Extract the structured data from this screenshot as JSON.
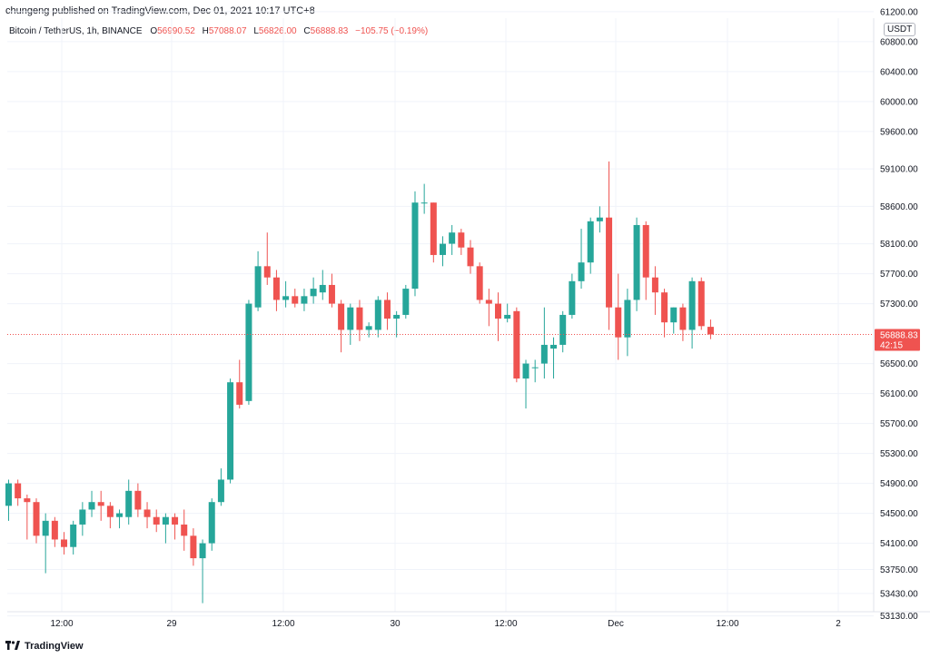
{
  "header": {
    "publisher_line": "chungeng published on TradingView.com, Dec 01, 2021 10:17 UTC+8"
  },
  "legend": {
    "symbol": "Bitcoin / TetherUS, 1h, BINANCE",
    "open_key": "O",
    "open": "56990.52",
    "high_key": "H",
    "high": "57088.07",
    "low_key": "L",
    "low": "56826.00",
    "close_key": "C",
    "close": "56888.83",
    "change": "−105.75 (−0.19%)"
  },
  "price_axis": {
    "currency": "USDT",
    "last_price": "56888.83",
    "countdown": "42:15",
    "ticks": [
      "61200.00",
      "60800.00",
      "60400.00",
      "60000.00",
      "59600.00",
      "59100.00",
      "58600.00",
      "58100.00",
      "57700.00",
      "57300.00",
      "56500.00",
      "56100.00",
      "55700.00",
      "55300.00",
      "54900.00",
      "54500.00",
      "54100.00",
      "53750.00",
      "53430.00",
      "53130.00"
    ]
  },
  "time_axis": {
    "labels": [
      "12:00",
      "29",
      "12:00",
      "30",
      "12:00",
      "Dec",
      "12:00",
      "2"
    ]
  },
  "footer": {
    "brand": "TradingView"
  },
  "colors": {
    "up": "#26a69a",
    "down": "#ef5350",
    "grid": "#f0f3fa",
    "text": "#131722"
  },
  "chart_data": {
    "type": "candlestick",
    "symbol": "Bitcoin / TetherUS",
    "interval": "1h",
    "exchange": "BINANCE",
    "ylim": [
      52900,
      61600
    ],
    "last_price": 56888.83,
    "grid": true,
    "candles": [
      {
        "o": 54600,
        "h": 54950,
        "l": 54400,
        "c": 54900
      },
      {
        "o": 54900,
        "h": 54950,
        "l": 54600,
        "c": 54700
      },
      {
        "o": 54700,
        "h": 54750,
        "l": 54150,
        "c": 54650
      },
      {
        "o": 54650,
        "h": 54700,
        "l": 54100,
        "c": 54200
      },
      {
        "o": 54200,
        "h": 54500,
        "l": 53700,
        "c": 54400
      },
      {
        "o": 54400,
        "h": 54450,
        "l": 54050,
        "c": 54150
      },
      {
        "o": 54150,
        "h": 54250,
        "l": 53950,
        "c": 54050
      },
      {
        "o": 54050,
        "h": 54400,
        "l": 53950,
        "c": 54350
      },
      {
        "o": 54350,
        "h": 54650,
        "l": 54200,
        "c": 54550
      },
      {
        "o": 54550,
        "h": 54800,
        "l": 54450,
        "c": 54650
      },
      {
        "o": 54650,
        "h": 54800,
        "l": 54400,
        "c": 54600
      },
      {
        "o": 54600,
        "h": 54650,
        "l": 54300,
        "c": 54450
      },
      {
        "o": 54450,
        "h": 54550,
        "l": 54300,
        "c": 54500
      },
      {
        "o": 54450,
        "h": 54950,
        "l": 54350,
        "c": 54800
      },
      {
        "o": 54800,
        "h": 54900,
        "l": 54450,
        "c": 54550
      },
      {
        "o": 54550,
        "h": 54650,
        "l": 54300,
        "c": 54450
      },
      {
        "o": 54450,
        "h": 54550,
        "l": 54250,
        "c": 54350
      },
      {
        "o": 54350,
        "h": 54500,
        "l": 54100,
        "c": 54450
      },
      {
        "o": 54450,
        "h": 54500,
        "l": 54150,
        "c": 54350
      },
      {
        "o": 54350,
        "h": 54550,
        "l": 54000,
        "c": 54200
      },
      {
        "o": 54200,
        "h": 54300,
        "l": 53800,
        "c": 53900
      },
      {
        "o": 53900,
        "h": 54150,
        "l": 53300,
        "c": 54100
      },
      {
        "o": 54100,
        "h": 54700,
        "l": 54000,
        "c": 54650
      },
      {
        "o": 54650,
        "h": 55100,
        "l": 54600,
        "c": 54950
      },
      {
        "o": 54950,
        "h": 56300,
        "l": 54900,
        "c": 56250
      },
      {
        "o": 56250,
        "h": 56550,
        "l": 55900,
        "c": 55950
      },
      {
        "o": 56000,
        "h": 57350,
        "l": 55950,
        "c": 57300
      },
      {
        "o": 57250,
        "h": 58000,
        "l": 57200,
        "c": 57800
      },
      {
        "o": 57800,
        "h": 58250,
        "l": 57550,
        "c": 57650
      },
      {
        "o": 57650,
        "h": 57750,
        "l": 57200,
        "c": 57350
      },
      {
        "o": 57350,
        "h": 57600,
        "l": 57250,
        "c": 57400
      },
      {
        "o": 57400,
        "h": 57500,
        "l": 57250,
        "c": 57300
      },
      {
        "o": 57300,
        "h": 57500,
        "l": 57200,
        "c": 57400
      },
      {
        "o": 57400,
        "h": 57650,
        "l": 57300,
        "c": 57500
      },
      {
        "o": 57450,
        "h": 57750,
        "l": 57350,
        "c": 57550
      },
      {
        "o": 57550,
        "h": 57700,
        "l": 57250,
        "c": 57300
      },
      {
        "o": 57300,
        "h": 57350,
        "l": 56650,
        "c": 56950
      },
      {
        "o": 56950,
        "h": 57300,
        "l": 56750,
        "c": 57250
      },
      {
        "o": 57250,
        "h": 57350,
        "l": 56800,
        "c": 56950
      },
      {
        "o": 56950,
        "h": 57050,
        "l": 56850,
        "c": 57000
      },
      {
        "o": 56950,
        "h": 57400,
        "l": 56850,
        "c": 57350
      },
      {
        "o": 57350,
        "h": 57450,
        "l": 56950,
        "c": 57100
      },
      {
        "o": 57100,
        "h": 57200,
        "l": 56850,
        "c": 57150
      },
      {
        "o": 57150,
        "h": 57550,
        "l": 57100,
        "c": 57500
      },
      {
        "o": 57500,
        "h": 58800,
        "l": 57400,
        "c": 58650
      },
      {
        "o": 58650,
        "h": 58900,
        "l": 58500,
        "c": 58650
      },
      {
        "o": 58650,
        "h": 58650,
        "l": 57850,
        "c": 57950
      },
      {
        "o": 57950,
        "h": 58200,
        "l": 57800,
        "c": 58100
      },
      {
        "o": 58100,
        "h": 58350,
        "l": 57950,
        "c": 58250
      },
      {
        "o": 58250,
        "h": 58300,
        "l": 57950,
        "c": 58050
      },
      {
        "o": 58050,
        "h": 58150,
        "l": 57700,
        "c": 57800
      },
      {
        "o": 57800,
        "h": 57850,
        "l": 57300,
        "c": 57350
      },
      {
        "o": 57350,
        "h": 57500,
        "l": 57000,
        "c": 57300
      },
      {
        "o": 57300,
        "h": 57450,
        "l": 56800,
        "c": 57100
      },
      {
        "o": 57100,
        "h": 57300,
        "l": 57050,
        "c": 57150
      },
      {
        "o": 57200,
        "h": 57250,
        "l": 56250,
        "c": 56300
      },
      {
        "o": 56300,
        "h": 56550,
        "l": 55900,
        "c": 56500
      },
      {
        "o": 56450,
        "h": 56550,
        "l": 56250,
        "c": 56450
      },
      {
        "o": 56500,
        "h": 57250,
        "l": 56300,
        "c": 56750
      },
      {
        "o": 56700,
        "h": 56850,
        "l": 56300,
        "c": 56750
      },
      {
        "o": 56750,
        "h": 57200,
        "l": 56650,
        "c": 57150
      },
      {
        "o": 57150,
        "h": 57700,
        "l": 57100,
        "c": 57600
      },
      {
        "o": 57600,
        "h": 58300,
        "l": 57500,
        "c": 57850
      },
      {
        "o": 57850,
        "h": 58450,
        "l": 57700,
        "c": 58400
      },
      {
        "o": 58400,
        "h": 58600,
        "l": 58250,
        "c": 58450
      },
      {
        "o": 58450,
        "h": 59200,
        "l": 56950,
        "c": 57250
      },
      {
        "o": 57250,
        "h": 57700,
        "l": 56550,
        "c": 56850
      },
      {
        "o": 56850,
        "h": 57500,
        "l": 56600,
        "c": 57350
      },
      {
        "o": 57350,
        "h": 58450,
        "l": 57200,
        "c": 58350
      },
      {
        "o": 58350,
        "h": 58400,
        "l": 57350,
        "c": 57650
      },
      {
        "o": 57650,
        "h": 57800,
        "l": 57150,
        "c": 57450
      },
      {
        "o": 57450,
        "h": 57500,
        "l": 56850,
        "c": 57050
      },
      {
        "o": 57050,
        "h": 57250,
        "l": 56900,
        "c": 57250
      },
      {
        "o": 57250,
        "h": 57300,
        "l": 56800,
        "c": 56950
      },
      {
        "o": 56950,
        "h": 57650,
        "l": 56700,
        "c": 57600
      },
      {
        "o": 57600,
        "h": 57650,
        "l": 56950,
        "c": 57000
      },
      {
        "o": 56990.52,
        "h": 57088.07,
        "l": 56826.0,
        "c": 56888.83
      }
    ]
  }
}
